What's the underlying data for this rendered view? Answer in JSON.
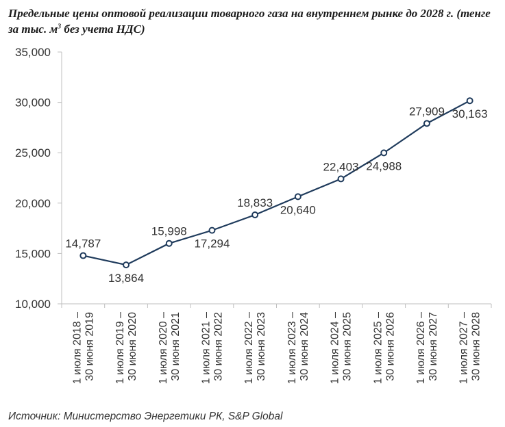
{
  "title_main": "Предельные цены оптовой реализации товарного газа на внутреннем рынке до 2028 г. (тенге за тыс. м",
  "title_sup": "3",
  "title_tail": " без учета НДС)",
  "source": "Источник: Министерство Энергетики РК, S&P Global",
  "chart_data": {
    "type": "line",
    "categories": [
      [
        "1 июля 2018 –",
        "30 июня 2019"
      ],
      [
        "1 июля 2019 –",
        "30 июня 2020"
      ],
      [
        "1 июля 2020 –",
        "30 июня 2021"
      ],
      [
        "1 июля 2021 –",
        "30 июня 2022"
      ],
      [
        "1 июля 2022 –",
        "30 июня 2023"
      ],
      [
        "1 июля 2023 –",
        "30 июня 2024"
      ],
      [
        "1 июля 2024 –",
        "30 июня 2025"
      ],
      [
        "1 июля 2025 –",
        "30 июня 2026"
      ],
      [
        "1 июля 2026 –",
        "30 июня 2027"
      ],
      [
        "1 июля 2027 –",
        "30 июня 2028"
      ]
    ],
    "values": [
      14787,
      13864,
      15998,
      17294,
      18833,
      20640,
      22403,
      24988,
      27909,
      30163
    ],
    "data_labels": [
      "14,787",
      "13,864",
      "15,998",
      "17,294",
      "18,833",
      "20,640",
      "22,403",
      "24,988",
      "27,909",
      "30,163"
    ],
    "label_positions": [
      "above",
      "below",
      "above",
      "below",
      "above",
      "below",
      "above",
      "below",
      "above",
      "below"
    ],
    "ylim": [
      10000,
      35000
    ],
    "yticks": [
      10000,
      15000,
      20000,
      25000,
      30000,
      35000
    ],
    "ytick_labels": [
      "10,000",
      "15,000",
      "20,000",
      "25,000",
      "30,000",
      "35,000"
    ],
    "grid": false,
    "colors": {
      "line": "#1f3b5c",
      "marker_fill": "#ffffff",
      "axis": "#bfbfbf"
    }
  }
}
